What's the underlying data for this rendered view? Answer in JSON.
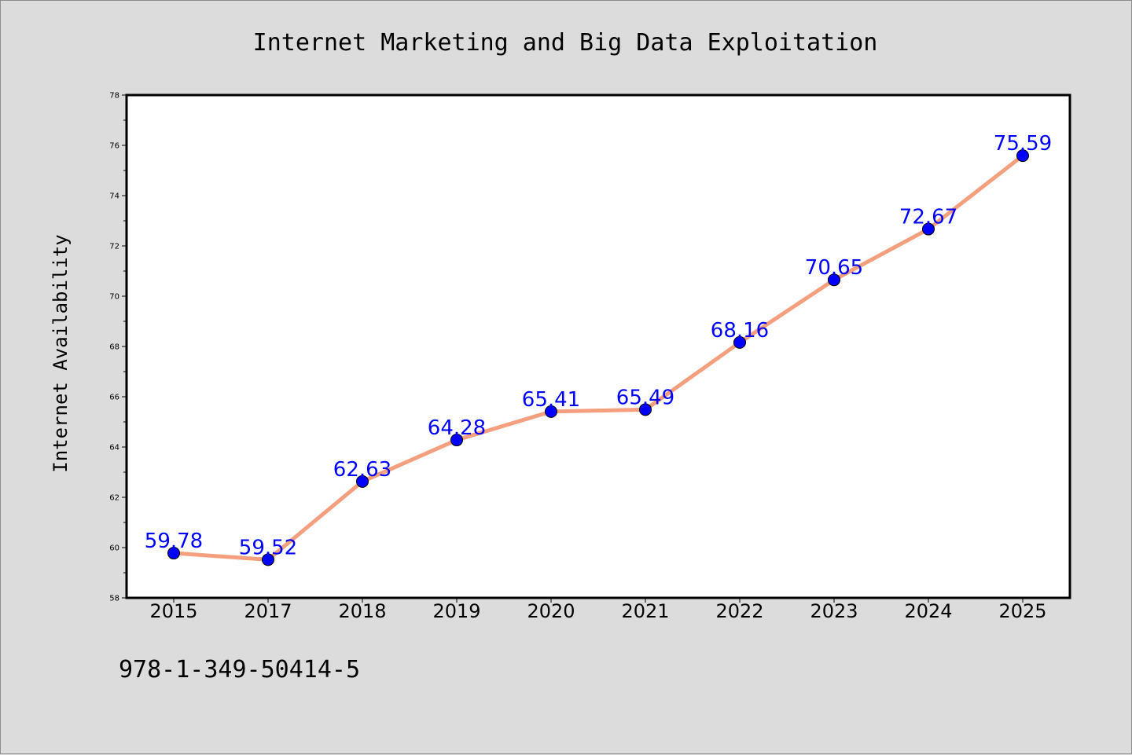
{
  "chart_data": {
    "type": "line",
    "title": "Internet Marketing and Big Data Exploitation",
    "xlabel": "",
    "ylabel": "Internet Availability",
    "categories": [
      "2015",
      "2017",
      "2018",
      "2019",
      "2020",
      "2021",
      "2022",
      "2023",
      "2024",
      "2025"
    ],
    "series": [
      {
        "values": [
          59.78,
          59.52,
          62.63,
          64.28,
          65.41,
          65.49,
          68.16,
          70.65,
          72.67,
          75.59
        ],
        "labels": [
          "59.78",
          "59.52",
          "62.63",
          "64.28",
          "65.41",
          "65.49",
          "68.16",
          "70.65",
          "72.67",
          "75.59"
        ],
        "line_color": "#f4a07e",
        "marker_color": "#0000ff"
      }
    ],
    "ylim": [
      58,
      78
    ],
    "yticks": [
      "58",
      "60",
      "62",
      "64",
      "66",
      "68",
      "70",
      "72",
      "74",
      "76",
      "78"
    ],
    "grid": false,
    "legend": "none"
  },
  "footer": {
    "isbn": "978-1-349-50414-5"
  },
  "colors": {
    "background": "#dcdcdc",
    "plot_area": "#ffffff",
    "label": "#0000ff"
  }
}
